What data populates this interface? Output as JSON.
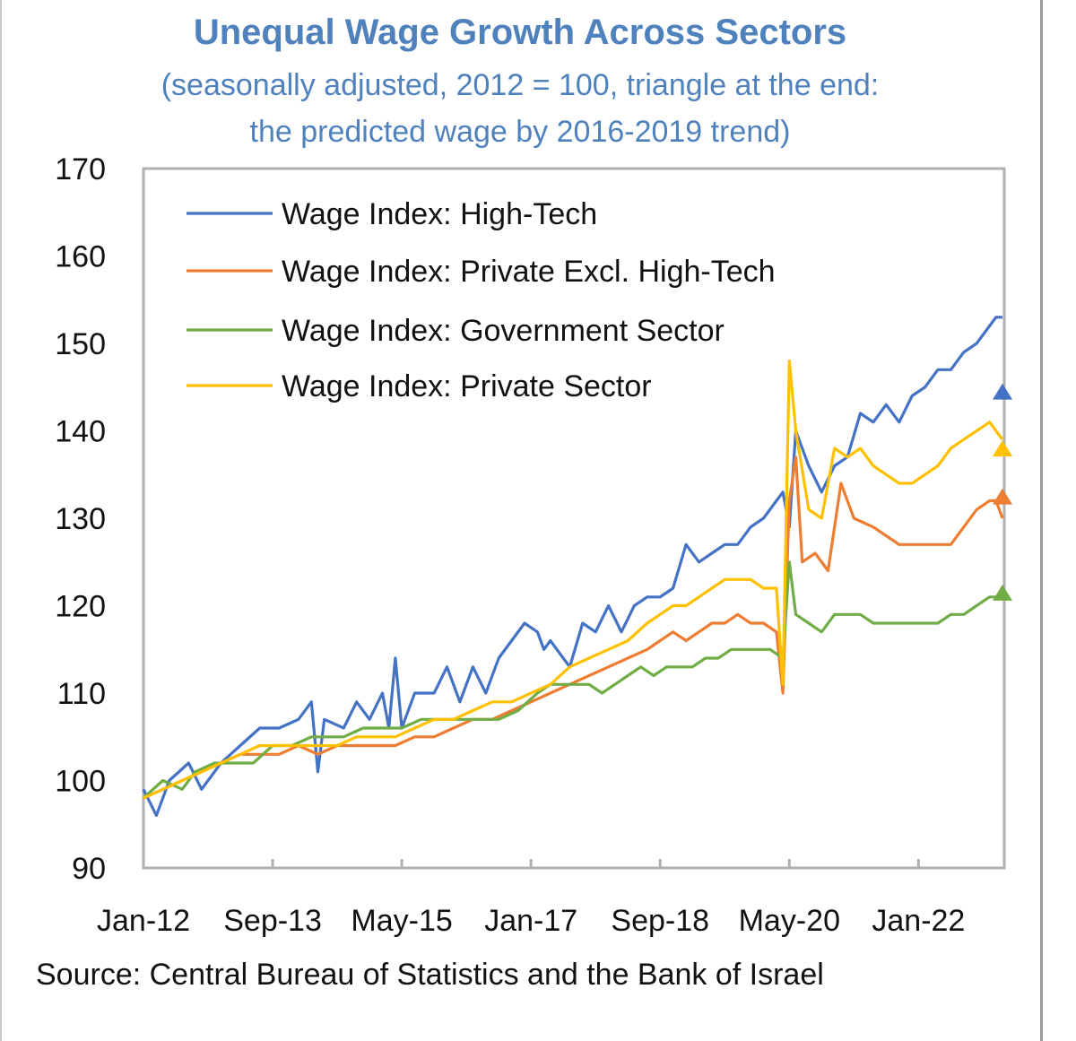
{
  "chart_data": {
    "type": "line",
    "title": "Unequal Wage Growth Across Sectors",
    "subtitle_line1": "(seasonally adjusted, 2012 = 100, triangle at the end:",
    "subtitle_line2": "the predicted wage by 2016-2019 trend)",
    "xlabel": "",
    "ylabel": "",
    "ylim": [
      90,
      170
    ],
    "yticks": [
      90,
      100,
      110,
      120,
      130,
      140,
      150,
      160,
      170
    ],
    "xlim": [
      0,
      133
    ],
    "xtick_positions": [
      0,
      20,
      40,
      60,
      80,
      100,
      120
    ],
    "xtick_labels": [
      "Jan-12",
      "Sep-13",
      "May-15",
      "Jan-17",
      "Sep-18",
      "May-20",
      "Jan-22"
    ],
    "legend_position": "top-left",
    "source": "Source: Central Bureau of Statistics and the Bank of Israel",
    "series": [
      {
        "name": "Wage Index: High-Tech",
        "color": "#4472c4",
        "points": [
          [
            0,
            99
          ],
          [
            2,
            96
          ],
          [
            4,
            100
          ],
          [
            7,
            102
          ],
          [
            9,
            99
          ],
          [
            12,
            102
          ],
          [
            15,
            104
          ],
          [
            18,
            106
          ],
          [
            21,
            106
          ],
          [
            24,
            107
          ],
          [
            26,
            109
          ],
          [
            27,
            101
          ],
          [
            28,
            107
          ],
          [
            31,
            106
          ],
          [
            33,
            109
          ],
          [
            35,
            107
          ],
          [
            37,
            110
          ],
          [
            38,
            106
          ],
          [
            39,
            114
          ],
          [
            40,
            106
          ],
          [
            42,
            110
          ],
          [
            45,
            110
          ],
          [
            47,
            113
          ],
          [
            49,
            109
          ],
          [
            51,
            113
          ],
          [
            53,
            110
          ],
          [
            55,
            114
          ],
          [
            57,
            116
          ],
          [
            59,
            118
          ],
          [
            61,
            117
          ],
          [
            62,
            115
          ],
          [
            63,
            116
          ],
          [
            64,
            115
          ],
          [
            66,
            113
          ],
          [
            68,
            118
          ],
          [
            70,
            117
          ],
          [
            72,
            120
          ],
          [
            74,
            117
          ],
          [
            76,
            120
          ],
          [
            78,
            121
          ],
          [
            80,
            121
          ],
          [
            82,
            122
          ],
          [
            84,
            127
          ],
          [
            86,
            125
          ],
          [
            88,
            126
          ],
          [
            90,
            127
          ],
          [
            92,
            127
          ],
          [
            94,
            129
          ],
          [
            96,
            130
          ],
          [
            98,
            132
          ],
          [
            99,
            133
          ],
          [
            100,
            129
          ],
          [
            101,
            140
          ],
          [
            103,
            136
          ],
          [
            105,
            133
          ],
          [
            107,
            136
          ],
          [
            109,
            137
          ],
          [
            111,
            142
          ],
          [
            113,
            141
          ],
          [
            115,
            143
          ],
          [
            117,
            141
          ],
          [
            119,
            144
          ],
          [
            121,
            145
          ],
          [
            123,
            147
          ],
          [
            125,
            147
          ],
          [
            127,
            149
          ],
          [
            129,
            150
          ],
          [
            131,
            152
          ],
          [
            132,
            153
          ],
          [
            133,
            153
          ]
        ],
        "predicted": {
          "x": 133,
          "y": 144.5
        }
      },
      {
        "name": "Wage Index: Private Excl. High-Tech",
        "color": "#ed7d31",
        "points": [
          [
            0,
            98
          ],
          [
            3,
            99
          ],
          [
            6,
            100
          ],
          [
            9,
            101
          ],
          [
            12,
            102
          ],
          [
            15,
            103
          ],
          [
            18,
            103
          ],
          [
            21,
            103
          ],
          [
            24,
            104
          ],
          [
            27,
            103
          ],
          [
            30,
            104
          ],
          [
            33,
            104
          ],
          [
            36,
            104
          ],
          [
            39,
            104
          ],
          [
            42,
            105
          ],
          [
            45,
            105
          ],
          [
            48,
            106
          ],
          [
            51,
            107
          ],
          [
            54,
            107
          ],
          [
            57,
            108
          ],
          [
            60,
            109
          ],
          [
            63,
            110
          ],
          [
            66,
            111
          ],
          [
            69,
            112
          ],
          [
            72,
            113
          ],
          [
            75,
            114
          ],
          [
            78,
            115
          ],
          [
            80,
            116
          ],
          [
            82,
            117
          ],
          [
            84,
            116
          ],
          [
            86,
            117
          ],
          [
            88,
            118
          ],
          [
            90,
            118
          ],
          [
            92,
            119
          ],
          [
            94,
            118
          ],
          [
            96,
            118
          ],
          [
            98,
            117
          ],
          [
            99,
            110
          ],
          [
            100,
            132
          ],
          [
            101,
            137
          ],
          [
            102,
            125
          ],
          [
            104,
            126
          ],
          [
            106,
            124
          ],
          [
            108,
            134
          ],
          [
            110,
            130
          ],
          [
            113,
            129
          ],
          [
            115,
            128
          ],
          [
            117,
            127
          ],
          [
            119,
            127
          ],
          [
            121,
            127
          ],
          [
            123,
            127
          ],
          [
            125,
            127
          ],
          [
            127,
            129
          ],
          [
            129,
            131
          ],
          [
            131,
            132
          ],
          [
            132,
            132
          ],
          [
            133,
            130
          ]
        ],
        "predicted": {
          "x": 133,
          "y": 132.5
        }
      },
      {
        "name": "Wage Index: Government Sector",
        "color": "#70ad47",
        "points": [
          [
            0,
            98
          ],
          [
            3,
            100
          ],
          [
            6,
            99
          ],
          [
            8,
            101
          ],
          [
            11,
            102
          ],
          [
            14,
            102
          ],
          [
            17,
            102
          ],
          [
            20,
            104
          ],
          [
            23,
            104
          ],
          [
            26,
            105
          ],
          [
            28,
            105
          ],
          [
            31,
            105
          ],
          [
            34,
            106
          ],
          [
            37,
            106
          ],
          [
            40,
            106
          ],
          [
            43,
            107
          ],
          [
            46,
            107
          ],
          [
            49,
            107
          ],
          [
            52,
            107
          ],
          [
            55,
            107
          ],
          [
            58,
            108
          ],
          [
            61,
            110
          ],
          [
            63,
            111
          ],
          [
            66,
            111
          ],
          [
            69,
            111
          ],
          [
            71,
            110
          ],
          [
            73,
            111
          ],
          [
            75,
            112
          ],
          [
            77,
            113
          ],
          [
            79,
            112
          ],
          [
            81,
            113
          ],
          [
            83,
            113
          ],
          [
            85,
            113
          ],
          [
            87,
            114
          ],
          [
            89,
            114
          ],
          [
            91,
            115
          ],
          [
            93,
            115
          ],
          [
            95,
            115
          ],
          [
            97,
            115
          ],
          [
            99,
            114
          ],
          [
            100,
            125
          ],
          [
            101,
            119
          ],
          [
            103,
            118
          ],
          [
            105,
            117
          ],
          [
            107,
            119
          ],
          [
            109,
            119
          ],
          [
            111,
            119
          ],
          [
            113,
            118
          ],
          [
            115,
            118
          ],
          [
            117,
            118
          ],
          [
            119,
            118
          ],
          [
            121,
            118
          ],
          [
            123,
            118
          ],
          [
            125,
            119
          ],
          [
            127,
            119
          ],
          [
            129,
            120
          ],
          [
            131,
            121
          ],
          [
            133,
            121
          ]
        ],
        "predicted": {
          "x": 133,
          "y": 121.5
        }
      },
      {
        "name": "Wage Index: Private Sector",
        "color": "#ffc000",
        "points": [
          [
            0,
            98
          ],
          [
            3,
            99
          ],
          [
            6,
            100
          ],
          [
            9,
            101
          ],
          [
            12,
            102
          ],
          [
            15,
            103
          ],
          [
            18,
            104
          ],
          [
            21,
            104
          ],
          [
            24,
            104
          ],
          [
            27,
            104
          ],
          [
            30,
            104
          ],
          [
            33,
            105
          ],
          [
            36,
            105
          ],
          [
            39,
            105
          ],
          [
            42,
            106
          ],
          [
            45,
            107
          ],
          [
            48,
            107
          ],
          [
            51,
            108
          ],
          [
            54,
            109
          ],
          [
            57,
            109
          ],
          [
            60,
            110
          ],
          [
            63,
            111
          ],
          [
            66,
            113
          ],
          [
            69,
            114
          ],
          [
            72,
            115
          ],
          [
            75,
            116
          ],
          [
            78,
            118
          ],
          [
            80,
            119
          ],
          [
            82,
            120
          ],
          [
            84,
            120
          ],
          [
            86,
            121
          ],
          [
            88,
            122
          ],
          [
            90,
            123
          ],
          [
            92,
            123
          ],
          [
            94,
            123
          ],
          [
            96,
            122
          ],
          [
            98,
            122
          ],
          [
            99,
            111
          ],
          [
            100,
            148
          ],
          [
            101,
            140
          ],
          [
            103,
            131
          ],
          [
            105,
            130
          ],
          [
            107,
            138
          ],
          [
            109,
            137
          ],
          [
            111,
            138
          ],
          [
            113,
            136
          ],
          [
            115,
            135
          ],
          [
            117,
            134
          ],
          [
            119,
            134
          ],
          [
            121,
            135
          ],
          [
            123,
            136
          ],
          [
            125,
            138
          ],
          [
            127,
            139
          ],
          [
            129,
            140
          ],
          [
            131,
            141
          ],
          [
            132,
            140
          ],
          [
            133,
            139
          ]
        ],
        "predicted": {
          "x": 133,
          "y": 138
        }
      }
    ]
  }
}
